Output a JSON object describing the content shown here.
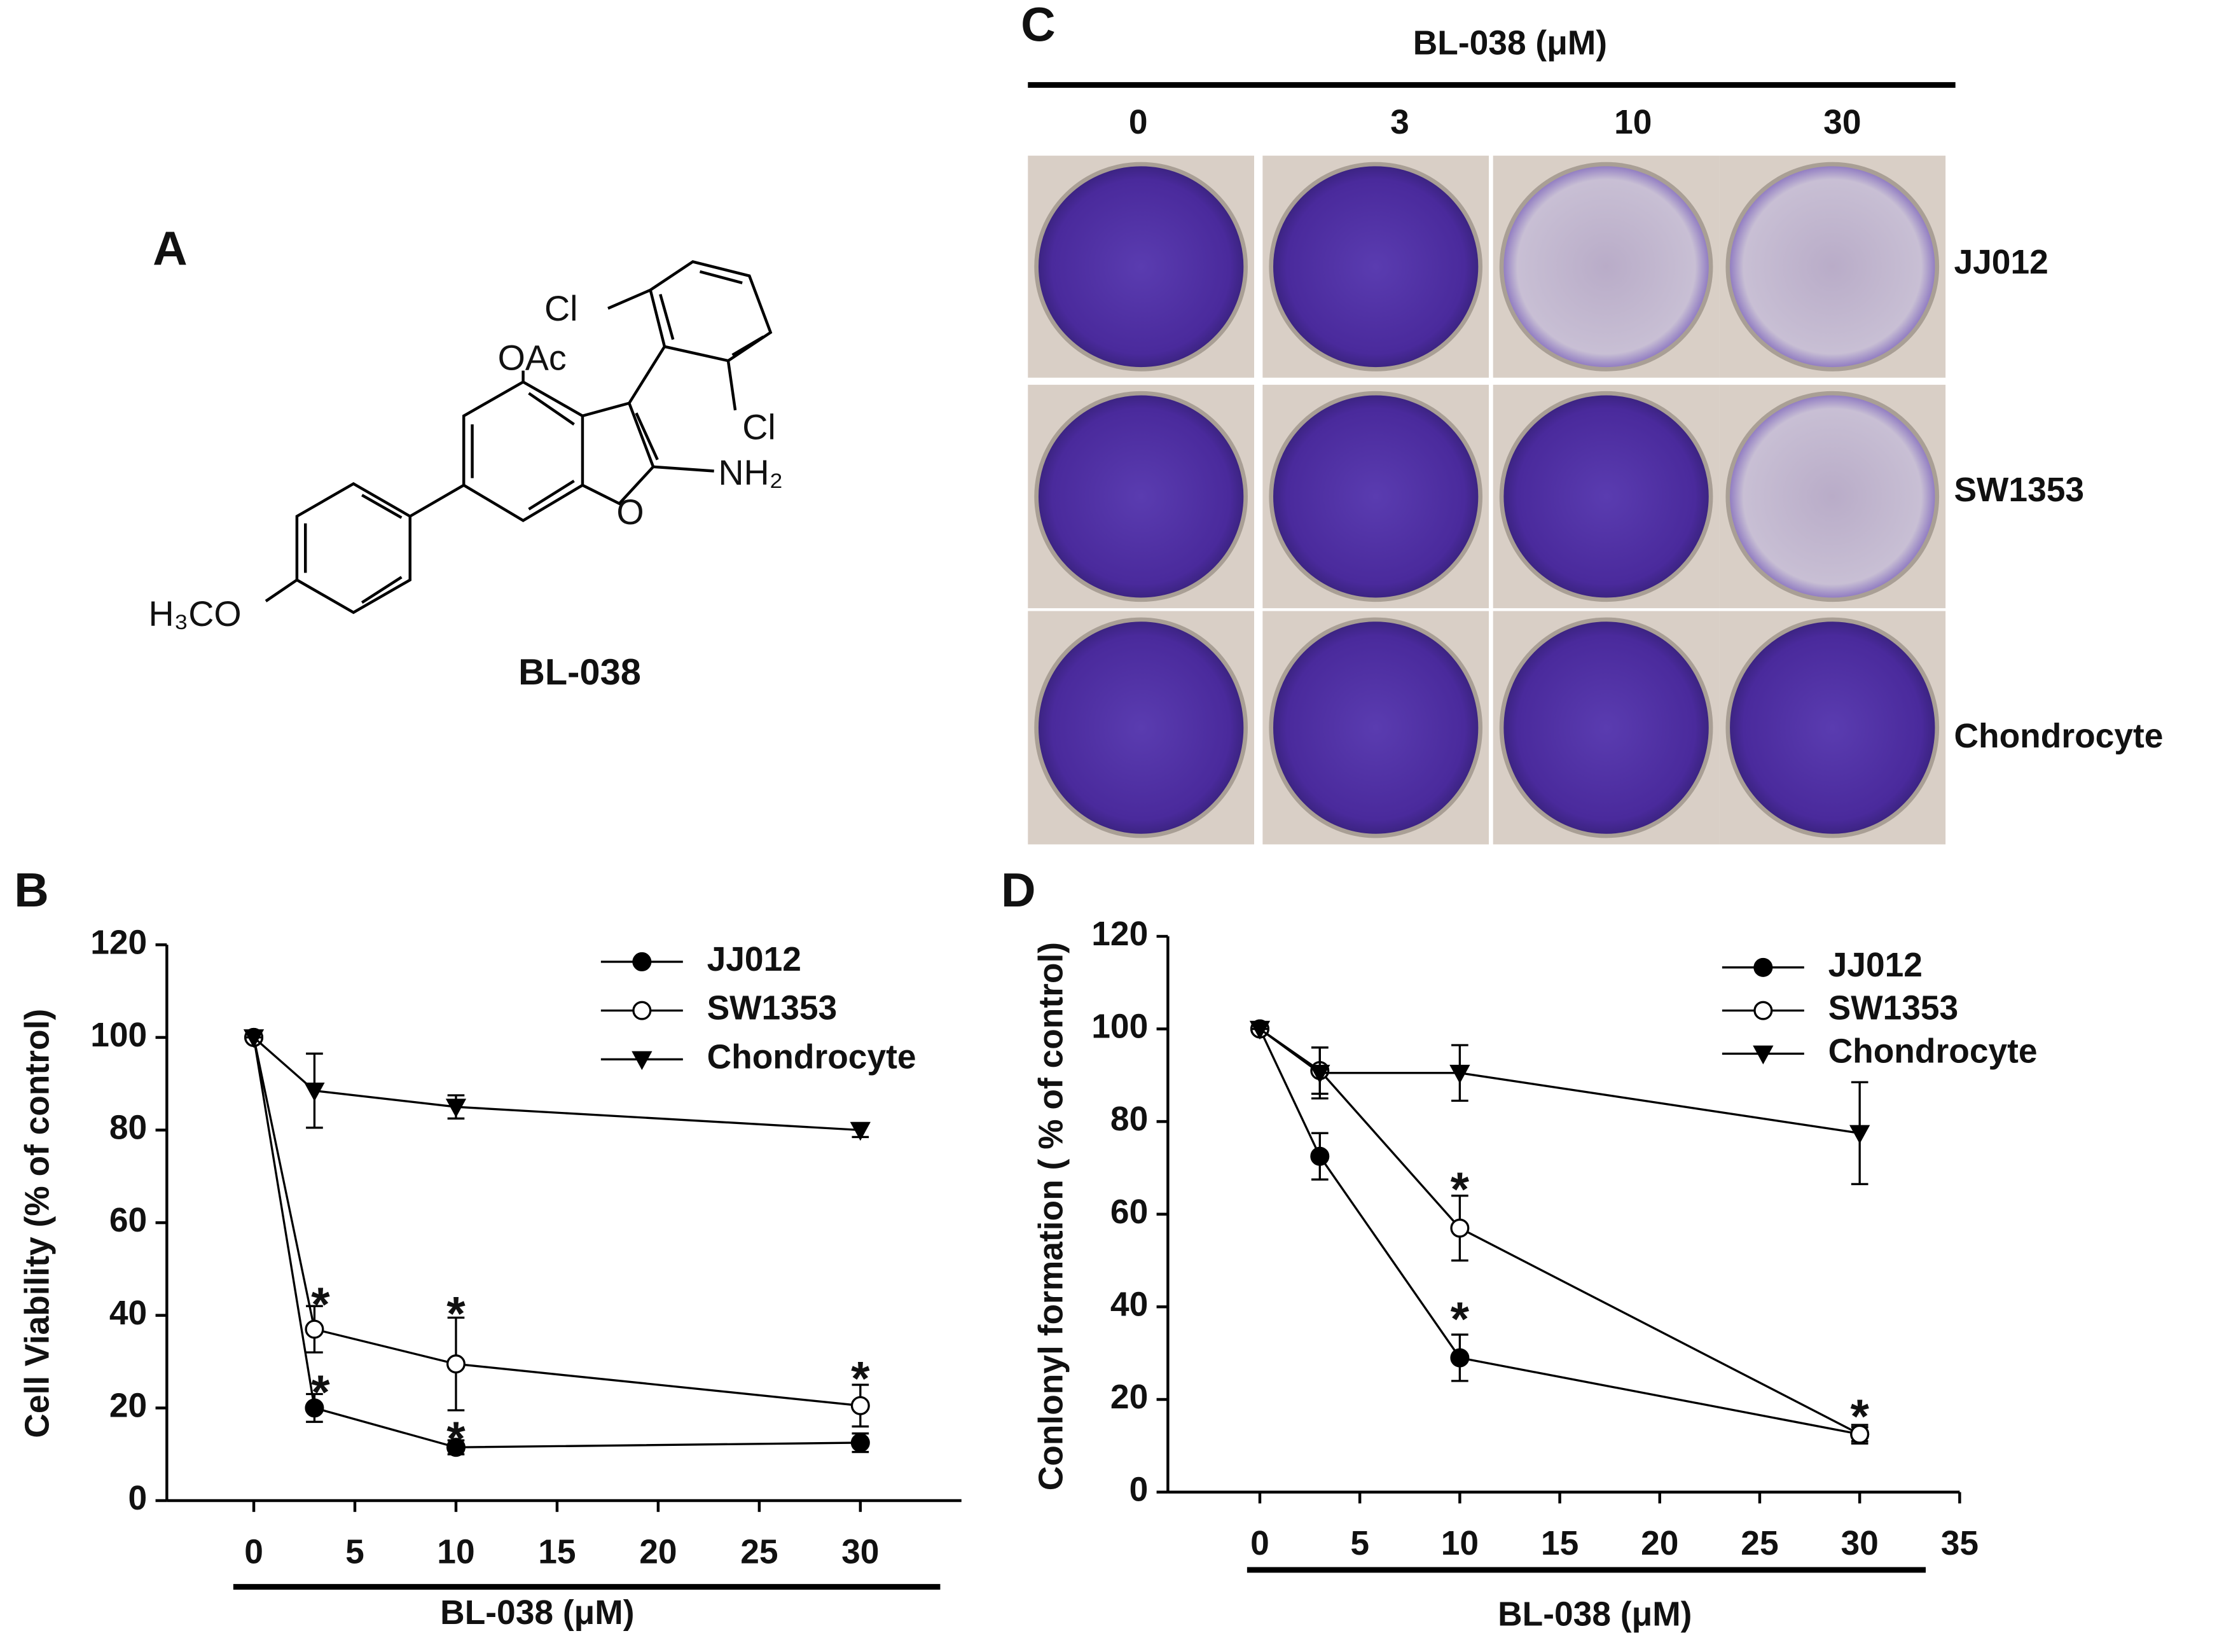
{
  "panel_labels": [
    "A",
    "B",
    "C",
    "D"
  ],
  "structure": {
    "atoms": [
      "Cl",
      "OAc",
      "Cl",
      "NH₂",
      "O",
      "H₃CO"
    ],
    "name": "BL-038"
  },
  "colony_assay": {
    "title": "BL-038 (μM)",
    "concentrations": [
      "0",
      "3",
      "10",
      "30"
    ],
    "cell_lines": [
      "JJ012",
      "SW1353",
      "Chondrocyte"
    ]
  },
  "chart_data": [
    {
      "type": "line",
      "xlabel": "BL-038 (μM)",
      "ylabel": "Cell Viability (% of control)",
      "x": [
        0,
        3,
        10,
        30
      ],
      "xlim": [
        -4.3,
        35
      ],
      "xticks": [
        0,
        5,
        10,
        15,
        20,
        25,
        30
      ],
      "ylim": [
        0,
        120
      ],
      "yticks": [
        0,
        20,
        40,
        60,
        80,
        100,
        120
      ],
      "legend": "upper right",
      "series": [
        {
          "name": "JJ012",
          "color": "#000000",
          "marker": "circle",
          "marker_fill": "#000000",
          "values": [
            100,
            20,
            11.5,
            12.5
          ],
          "errors": [
            0,
            3,
            1.5,
            2
          ]
        },
        {
          "name": "SW1353",
          "color": "#000000",
          "marker": "circle",
          "marker_fill": "#ffffff",
          "values": [
            100,
            37,
            29.5,
            20.5
          ],
          "errors": [
            0,
            5,
            10,
            4.5
          ]
        },
        {
          "name": "Chondrocyte",
          "color": "#000000",
          "marker": "triangle-down",
          "marker_fill": "#000000",
          "values": [
            100,
            88.5,
            85,
            80
          ],
          "errors": [
            0,
            8,
            2.5,
            1.5
          ]
        }
      ],
      "annotations": [
        {
          "text": "*",
          "x": 3.3,
          "y": 44
        },
        {
          "text": "*",
          "x": 3.3,
          "y": 25
        },
        {
          "text": "*",
          "x": 10,
          "y": 42
        },
        {
          "text": "*",
          "x": 10,
          "y": 15
        },
        {
          "text": "*",
          "x": 30,
          "y": 28
        }
      ]
    },
    {
      "type": "line",
      "xlabel": "BL-038 (μM)",
      "ylabel": "Conlonyl formation ( % of control)",
      "x": [
        0,
        3,
        10,
        30
      ],
      "xlim": [
        -4.6,
        35
      ],
      "xticks": [
        0,
        5,
        10,
        15,
        20,
        25,
        30,
        35
      ],
      "ylim": [
        0,
        120
      ],
      "yticks": [
        0,
        20,
        40,
        60,
        80,
        100,
        120
      ],
      "legend": "upper right",
      "series": [
        {
          "name": "JJ012",
          "color": "#000000",
          "marker": "circle",
          "marker_fill": "#000000",
          "values": [
            100,
            72.5,
            29,
            12.5
          ],
          "errors": [
            0,
            5,
            5,
            2
          ]
        },
        {
          "name": "SW1353",
          "color": "#000000",
          "marker": "circle",
          "marker_fill": "#ffffff",
          "values": [
            100,
            91,
            57,
            12.5
          ],
          "errors": [
            0,
            5,
            7,
            1.5
          ]
        },
        {
          "name": "Chondrocyte",
          "color": "#000000",
          "marker": "triangle-down",
          "marker_fill": "#000000",
          "values": [
            100,
            90.5,
            90.5,
            77.5
          ],
          "errors": [
            0,
            5.5,
            6,
            11
          ]
        }
      ],
      "annotations": [
        {
          "text": "*",
          "x": 10,
          "y": 67
        },
        {
          "text": "*",
          "x": 10,
          "y": 39
        },
        {
          "text": "*",
          "x": 30,
          "y": 18
        }
      ]
    }
  ]
}
